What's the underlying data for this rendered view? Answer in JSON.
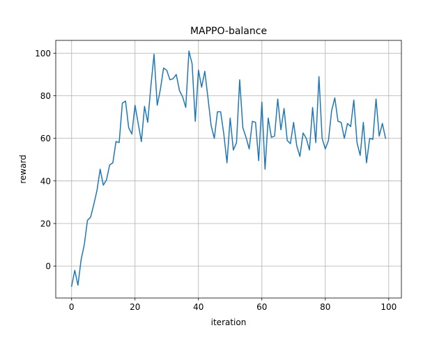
{
  "chart_data": {
    "type": "line",
    "title": "MAPPO-balance",
    "xlabel": "iteration",
    "ylabel": "reward",
    "xlim": [
      -5,
      104
    ],
    "ylim": [
      -15,
      106
    ],
    "xticks": [
      0,
      20,
      40,
      60,
      80,
      100
    ],
    "yticks": [
      0,
      20,
      40,
      60,
      80,
      100
    ],
    "xtick_labels": [
      "0",
      "20",
      "40",
      "60",
      "80",
      "100"
    ],
    "ytick_labels": [
      "0",
      "20",
      "40",
      "60",
      "80",
      "100"
    ],
    "grid": true,
    "series": [
      {
        "color": "#1f77b4",
        "x": [
          0,
          1,
          2,
          3,
          4,
          5,
          6,
          7,
          8,
          9,
          10,
          11,
          12,
          13,
          14,
          15,
          16,
          17,
          18,
          19,
          20,
          21,
          22,
          23,
          24,
          25,
          26,
          27,
          28,
          29,
          30,
          31,
          32,
          33,
          34,
          35,
          36,
          37,
          38,
          39,
          40,
          41,
          42,
          43,
          44,
          45,
          46,
          47,
          48,
          49,
          50,
          51,
          52,
          53,
          54,
          55,
          56,
          57,
          58,
          59,
          60,
          61,
          62,
          63,
          64,
          65,
          66,
          67,
          68,
          69,
          70,
          71,
          72,
          73,
          74,
          75,
          76,
          77,
          78,
          79,
          80,
          81,
          82,
          83,
          84,
          85,
          86,
          87,
          88,
          89,
          90,
          91,
          92,
          93,
          94,
          95,
          96,
          97,
          98,
          99
        ],
        "values": [
          -9.5,
          -2,
          -9,
          3,
          10,
          21.5,
          23,
          29,
          35.5,
          45.5,
          38,
          40.5,
          47.5,
          48.5,
          58.5,
          58,
          76.5,
          77.5,
          65,
          62,
          75.5,
          67,
          58.5,
          75,
          67.5,
          84.5,
          99.5,
          75.5,
          83,
          93,
          92,
          87.5,
          88,
          90,
          82.5,
          79.5,
          74.5,
          101,
          95,
          68,
          92,
          84,
          91.5,
          79,
          66,
          60,
          72.5,
          72.5,
          62,
          48.5,
          69.5,
          54.5,
          58,
          87.5,
          65,
          60.5,
          55,
          68,
          67.5,
          49.5,
          77,
          45.5,
          69.5,
          60.5,
          61,
          78.5,
          64,
          74,
          59,
          57.5,
          67.5,
          56.5,
          51.5,
          62.5,
          60,
          54.5,
          74.5,
          58,
          89,
          60,
          55,
          59,
          73,
          79,
          68,
          67.5,
          60,
          67,
          65.5,
          78,
          58,
          52,
          67.5,
          48.5,
          60,
          59.5,
          78.5,
          61,
          67,
          60
        ]
      }
    ]
  }
}
